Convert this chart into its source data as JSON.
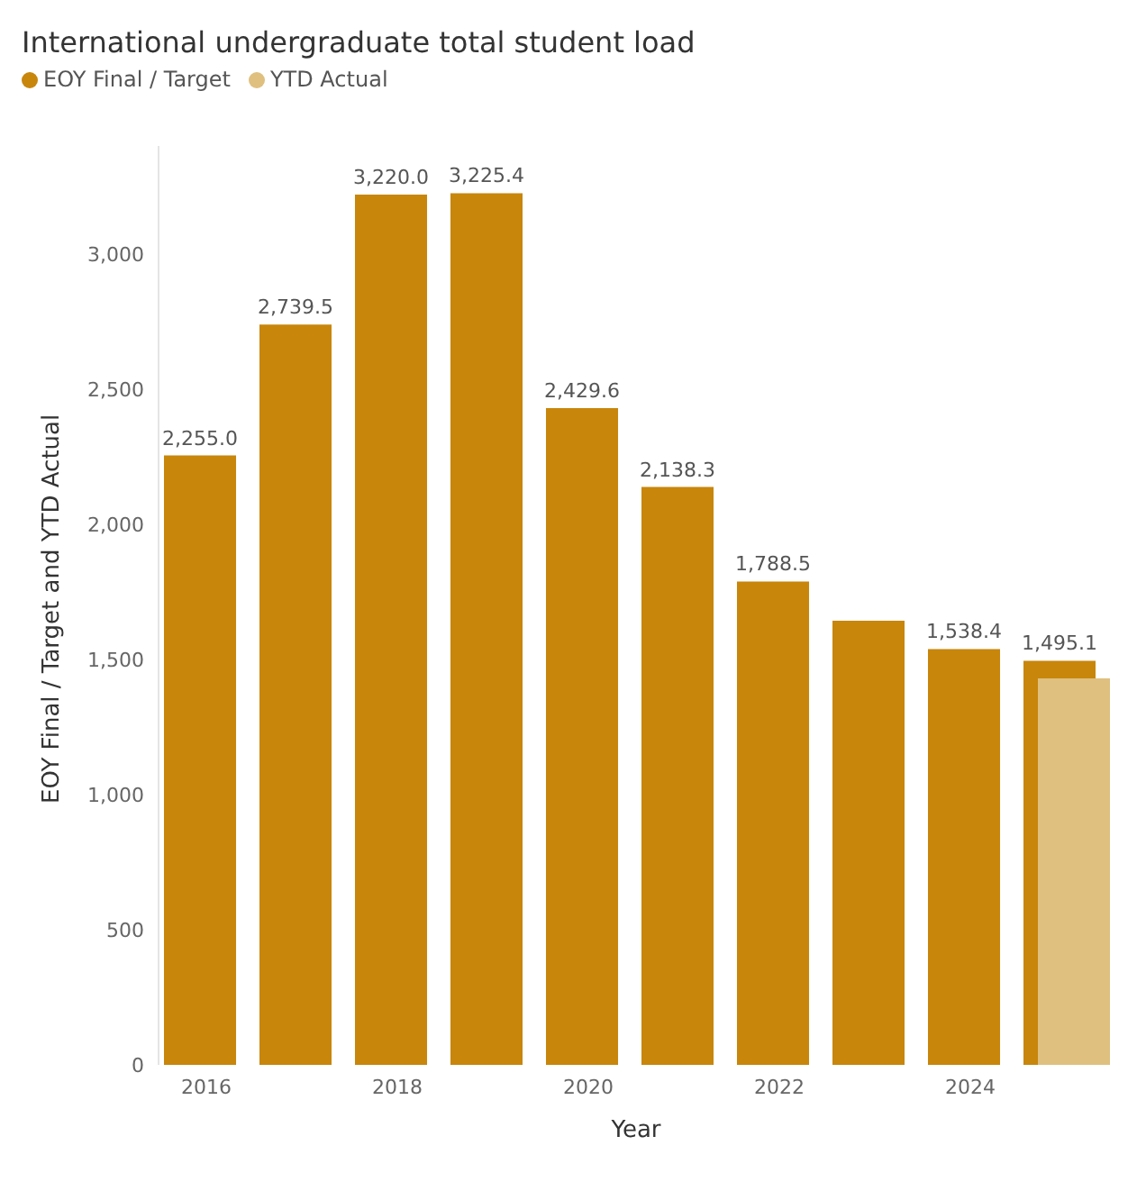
{
  "chart_data": {
    "type": "bar",
    "title": "International undergraduate total student load",
    "xlabel": "Year",
    "ylabel": "EOY Final / Target and YTD Actual",
    "categories": [
      "2016",
      null,
      "2018",
      null,
      "2020",
      null,
      "2022",
      null,
      "2024",
      null
    ],
    "series": [
      {
        "name": "EOY Final / Target",
        "color": "#c8860b",
        "values": [
          2255.0,
          2739.5,
          3220.0,
          3225.4,
          2429.6,
          2138.3,
          1788.5,
          1643,
          1538.4,
          1495.1
        ],
        "value_labels": [
          "2,255.0",
          "2,739.5",
          "3,220.0",
          "3,225.4",
          "2,429.6",
          "2,138.3",
          "1,788.5",
          null,
          "1,538.4",
          "1,495.1"
        ]
      },
      {
        "name": "YTD Actual",
        "color": "#dfc07f",
        "values": [
          null,
          null,
          null,
          null,
          null,
          null,
          null,
          null,
          null,
          1430
        ]
      }
    ],
    "ylim": [
      0,
      3400
    ],
    "yticks": [
      0,
      500,
      {
        "value": 1000,
        "label": "1,000"
      },
      {
        "value": 1500,
        "label": "1,500"
      },
      {
        "value": 2000,
        "label": "2,000"
      },
      {
        "value": 2500,
        "label": "2,500"
      },
      {
        "value": 3000,
        "label": "3,000"
      }
    ],
    "legend": "top left",
    "grid": false
  }
}
